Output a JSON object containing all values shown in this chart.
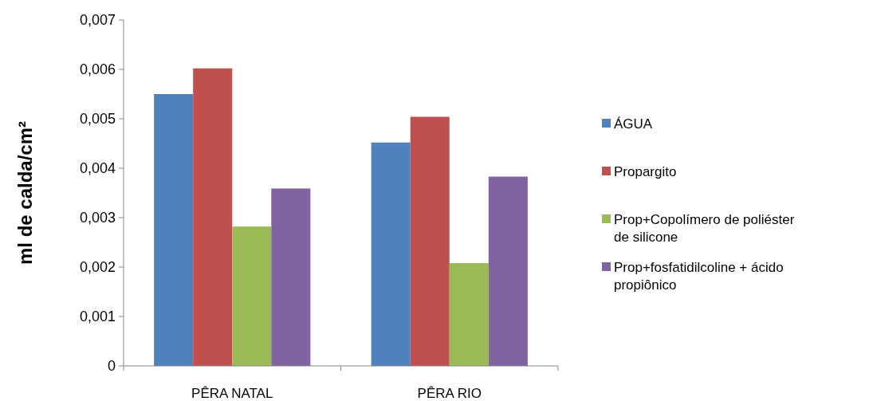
{
  "chart_data": {
    "type": "bar",
    "ylabel": "ml  de calda/cm²",
    "categories": [
      "PÊRA NATAL",
      "PÊRA RIO"
    ],
    "series": [
      {
        "name": "ÁGUA",
        "color": "#4f81bd",
        "values": [
          0.0055,
          0.00452
        ]
      },
      {
        "name": "Propargito",
        "color": "#c0504d",
        "values": [
          0.00602,
          0.00504
        ]
      },
      {
        "name": "Prop+Copolímero de poliéster de silicone",
        "color": "#9bbb59",
        "values": [
          0.00282,
          0.00208
        ]
      },
      {
        "name": "Prop+fosfatidilcoline + ácido propiônico",
        "color": "#8064a2",
        "values": [
          0.00359,
          0.00383
        ]
      }
    ],
    "ylim": [
      0,
      0.007
    ],
    "yticks": [
      {
        "value": 0,
        "label": "0"
      },
      {
        "value": 0.001,
        "label": "0,001"
      },
      {
        "value": 0.002,
        "label": "0,002"
      },
      {
        "value": 0.003,
        "label": "0,003"
      },
      {
        "value": 0.004,
        "label": "0,004"
      },
      {
        "value": 0.005,
        "label": "0,005"
      },
      {
        "value": 0.006,
        "label": "0,006"
      },
      {
        "value": 0.007,
        "label": "0,007"
      }
    ],
    "grid": false,
    "legend": "right"
  }
}
